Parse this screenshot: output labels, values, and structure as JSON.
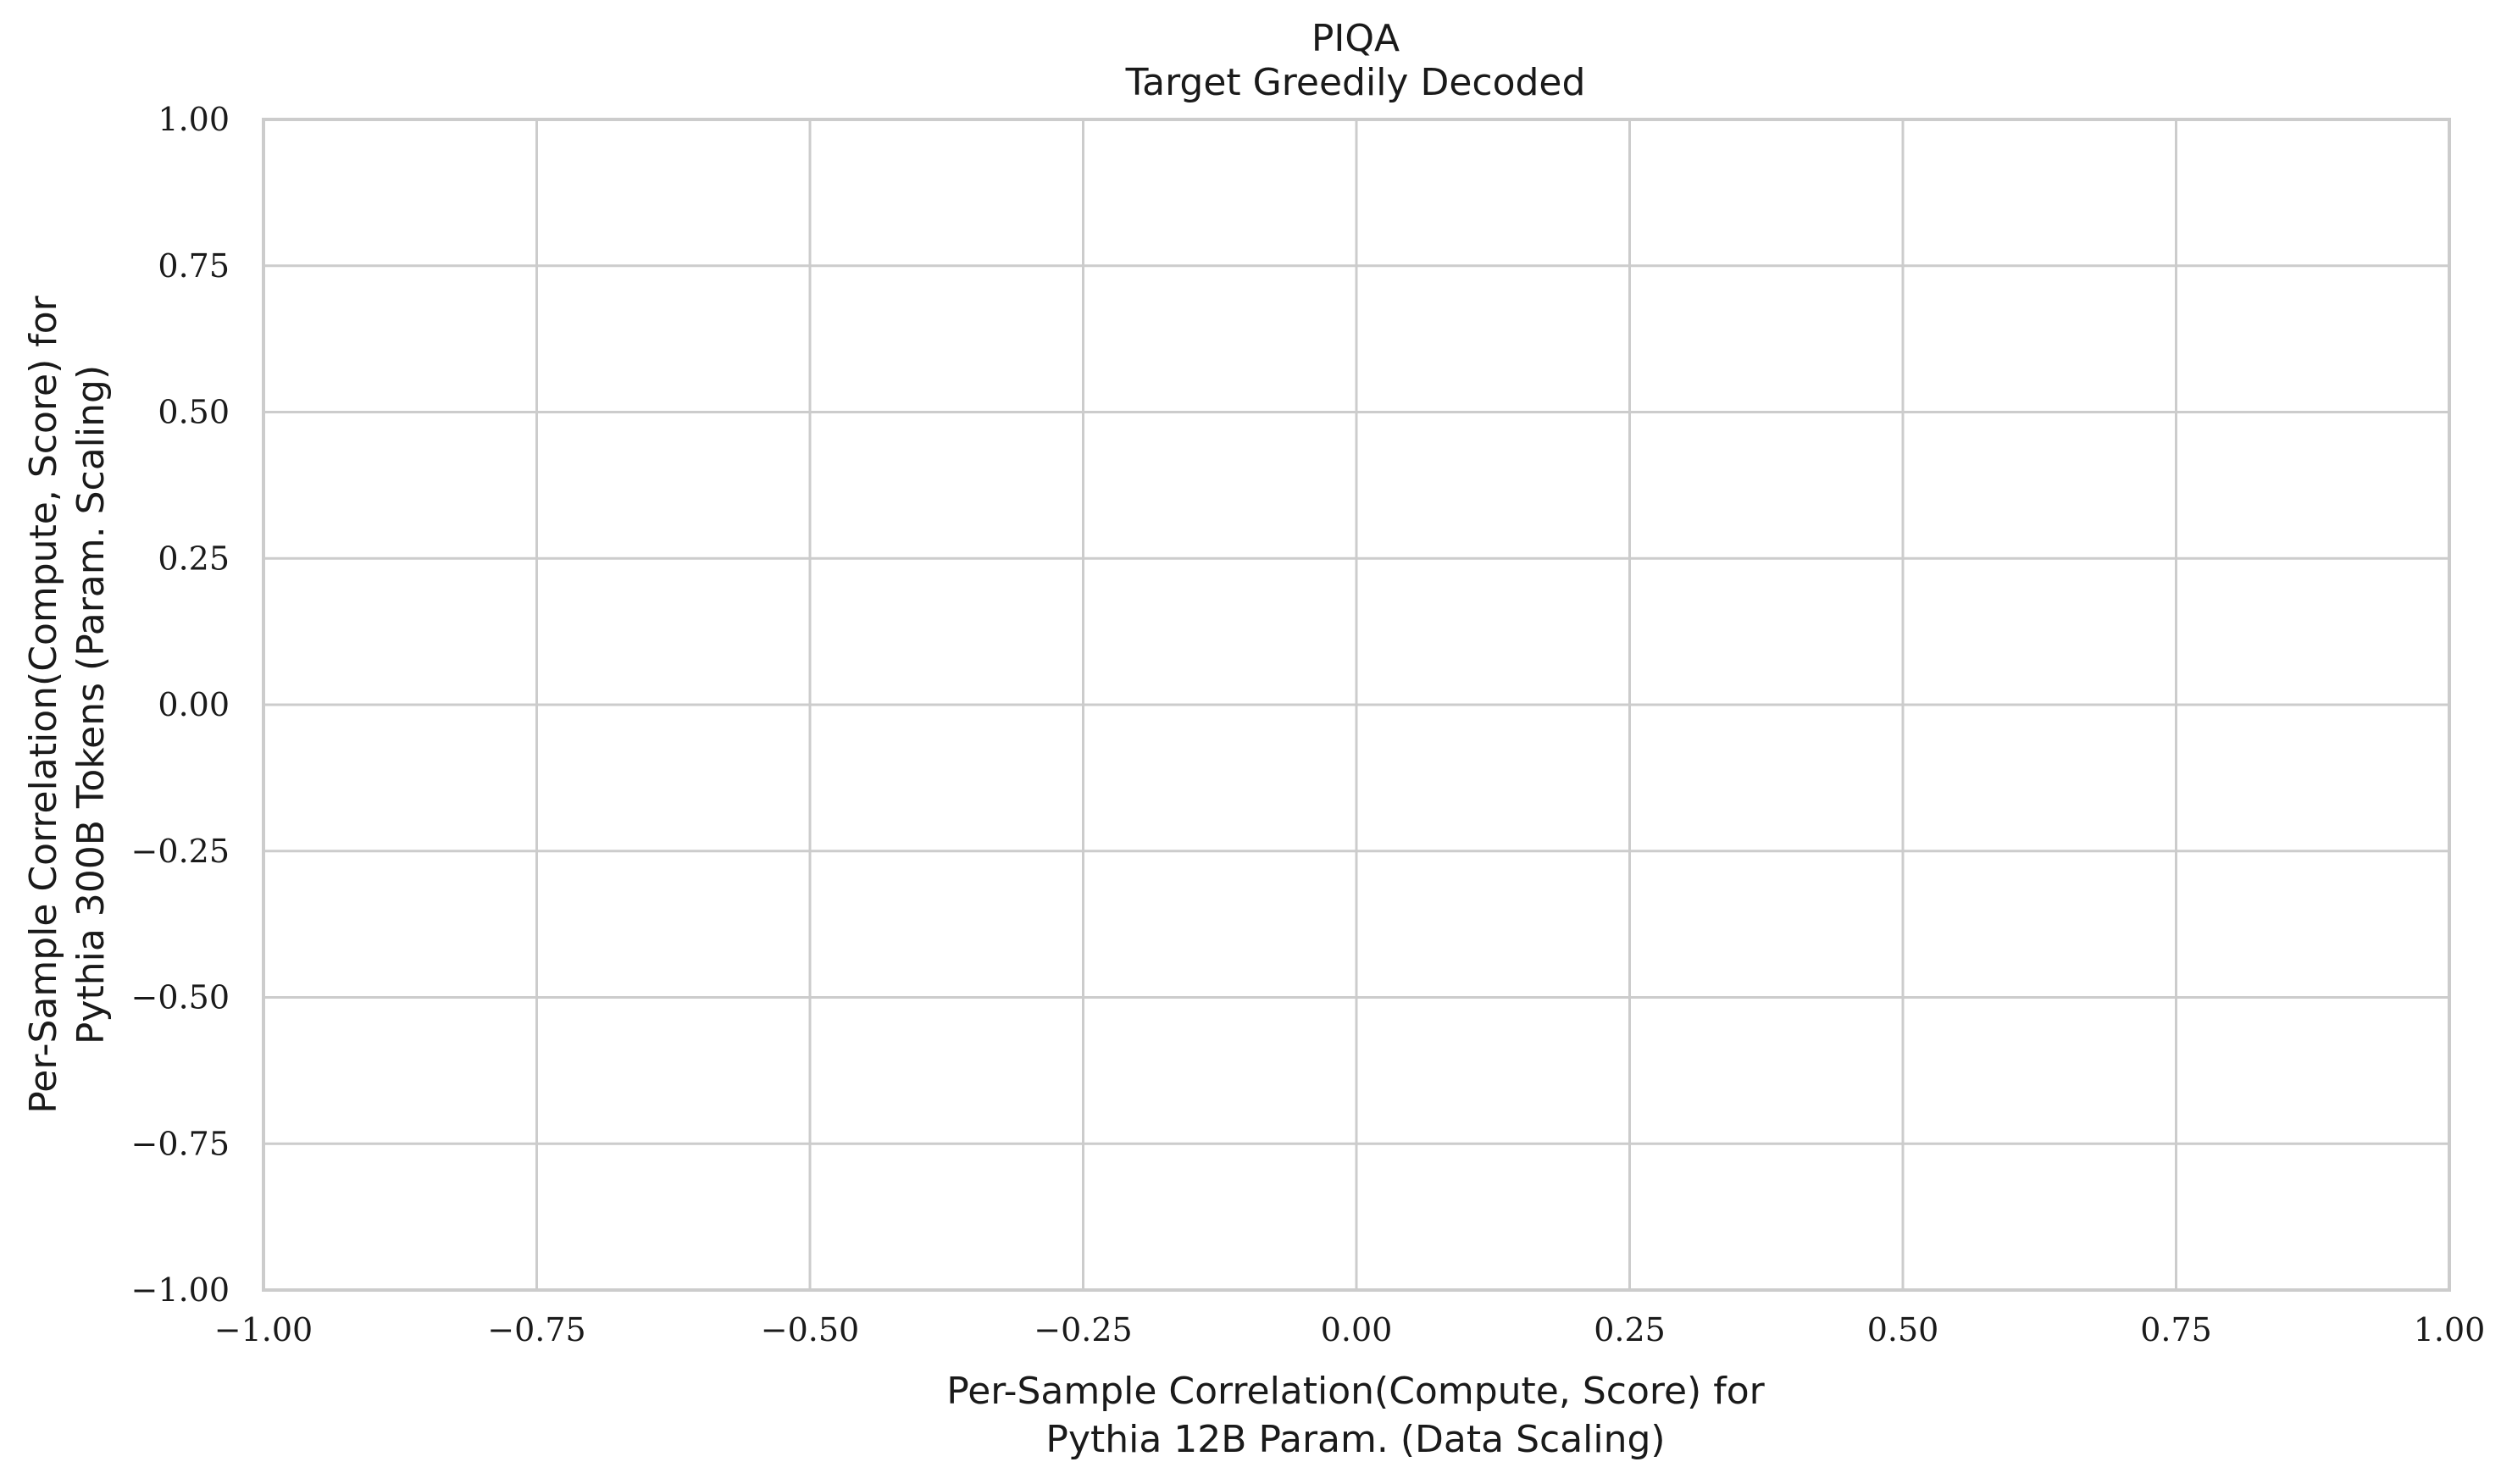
{
  "chart_data": {
    "type": "scatter",
    "title": "PIQA",
    "subtitle": "Target Greedily Decoded",
    "xlabel_lines": [
      "Per-Sample Correlation(Compute, Score) for",
      "Pythia 12B Param. (Data Scaling)"
    ],
    "ylabel_lines": [
      "Per-Sample Correlation(Compute, Score) for",
      "Pythia 300B Tokens (Param. Scaling)"
    ],
    "xlim": [
      -1.0,
      1.0
    ],
    "ylim": [
      -1.0,
      1.0
    ],
    "x_ticks": [
      -1.0,
      -0.75,
      -0.5,
      -0.25,
      0.0,
      0.25,
      0.5,
      0.75,
      1.0
    ],
    "y_ticks": [
      -1.0,
      -0.75,
      -0.5,
      -0.25,
      0.0,
      0.25,
      0.5,
      0.75,
      1.0
    ],
    "x_tick_labels": [
      "−1.00",
      "−0.75",
      "−0.50",
      "−0.25",
      "0.00",
      "0.25",
      "0.50",
      "0.75",
      "1.00"
    ],
    "y_tick_labels": [
      "−1.00",
      "−0.75",
      "−0.50",
      "−0.25",
      "0.00",
      "0.25",
      "0.50",
      "0.75",
      "1.00"
    ],
    "grid": true,
    "points": []
  },
  "colors": {
    "grid": "#cccccc",
    "text": "#1a1a1a",
    "background": "#ffffff"
  }
}
